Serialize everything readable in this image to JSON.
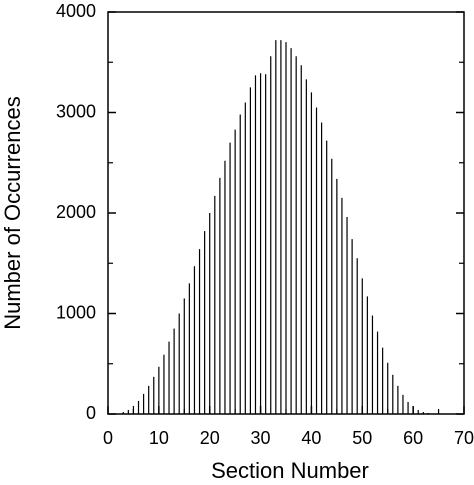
{
  "chart_data": {
    "type": "bar",
    "x_label": "Section Number",
    "y_label": "Number of Occurrences",
    "x": [
      3,
      4,
      5,
      6,
      7,
      8,
      9,
      10,
      11,
      12,
      13,
      14,
      15,
      16,
      17,
      18,
      19,
      20,
      21,
      22,
      23,
      24,
      25,
      26,
      27,
      28,
      29,
      30,
      31,
      32,
      33,
      34,
      35,
      36,
      37,
      38,
      39,
      40,
      41,
      42,
      43,
      44,
      45,
      46,
      47,
      48,
      49,
      50,
      51,
      52,
      53,
      54,
      55,
      56,
      57,
      58,
      59,
      60,
      61,
      62,
      63
    ],
    "values": [
      20,
      40,
      80,
      130,
      200,
      280,
      370,
      470,
      590,
      720,
      850,
      1000,
      1150,
      1300,
      1470,
      1640,
      1820,
      2000,
      2170,
      2350,
      2520,
      2700,
      2830,
      2980,
      3100,
      3250,
      3370,
      3390,
      3380,
      3560,
      3720,
      3720,
      3700,
      3640,
      3560,
      3470,
      3330,
      3200,
      3050,
      2900,
      2720,
      2540,
      2340,
      2150,
      1960,
      1740,
      1550,
      1350,
      1170,
      980,
      820,
      660,
      510,
      390,
      280,
      190,
      120,
      70,
      40,
      20,
      10
    ],
    "color": "#000000",
    "xlim": [
      0,
      70
    ],
    "xticks": [
      0,
      10,
      20,
      30,
      40,
      50,
      60,
      70
    ],
    "ylim": [
      0,
      4000
    ],
    "yticks": [
      0,
      1000,
      2000,
      3000,
      4000
    ]
  }
}
